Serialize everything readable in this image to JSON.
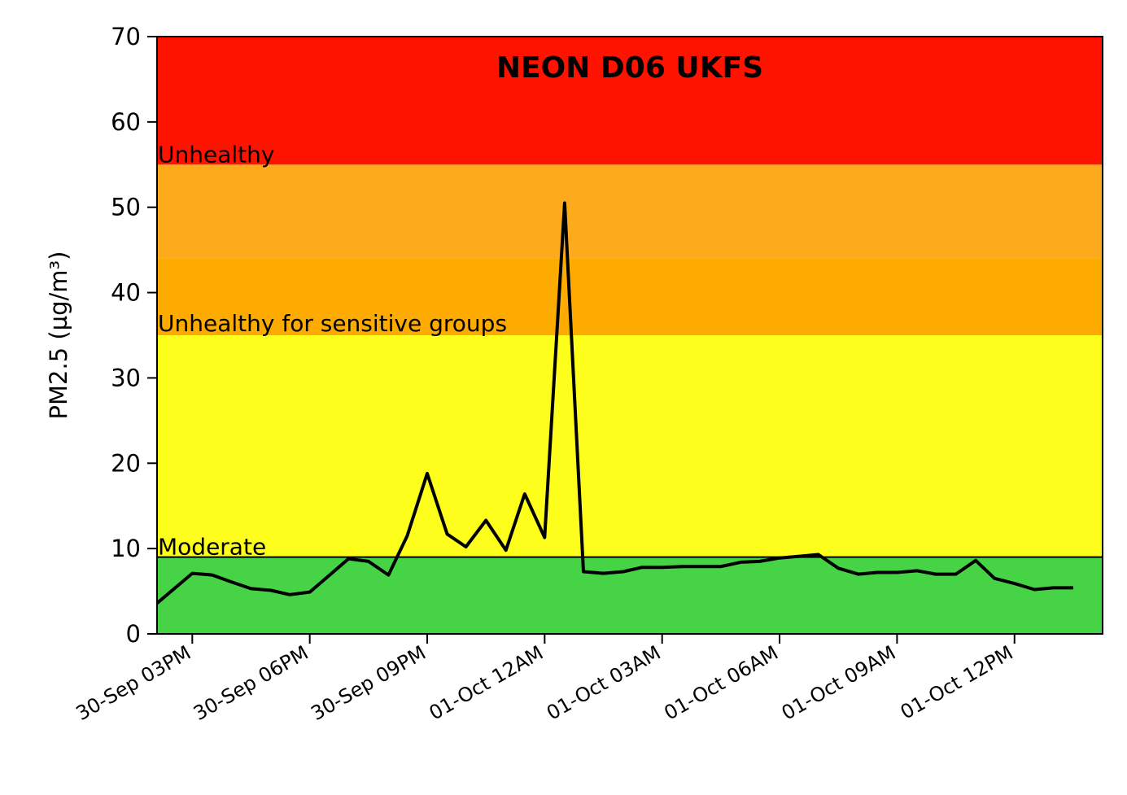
{
  "chart_data": {
    "type": "line",
    "title": "NEON D06 UKFS",
    "ylabel": "PM2.5 (µg/m³)",
    "xlabel": "",
    "ylim": [
      0,
      70
    ],
    "xlim": [
      -0.3,
      7.75
    ],
    "yticks": [
      0,
      10,
      20,
      30,
      40,
      50,
      60,
      70
    ],
    "xticks": [
      {
        "value": 0,
        "label": "30-Sep 03PM"
      },
      {
        "value": 1,
        "label": "30-Sep 06PM"
      },
      {
        "value": 2,
        "label": "30-Sep 09PM"
      },
      {
        "value": 3,
        "label": "01-Oct 12AM"
      },
      {
        "value": 4,
        "label": "01-Oct 03AM"
      },
      {
        "value": 5,
        "label": "01-Oct 06AM"
      },
      {
        "value": 6,
        "label": "01-Oct 09AM"
      },
      {
        "value": 7,
        "label": "01-Oct 12PM"
      }
    ],
    "x_unit": "hours (each tick = 3 hours)",
    "grid": false,
    "line_color": "#000000",
    "bands": [
      {
        "from": 0,
        "to": 9,
        "color": "#46d446",
        "label": ""
      },
      {
        "from": 9,
        "to": 35,
        "color": "#fefe1c",
        "label": "Moderate"
      },
      {
        "from": 35,
        "to": 44,
        "color": "#fdab00",
        "label": "Unhealthy for sensitive groups"
      },
      {
        "from": 44,
        "to": 55,
        "color": "#fdab1c",
        "label": ""
      },
      {
        "from": 55,
        "to": 70,
        "color": "#fe1300",
        "label": "Unhealthy"
      }
    ],
    "threshold_line": 9,
    "band_labels": [
      {
        "text": "Unhealthy",
        "y": 55
      },
      {
        "text": "Unhealthy for sensitive groups",
        "y": 35.2
      },
      {
        "text": "Moderate",
        "y": 9
      }
    ],
    "series": [
      {
        "x": [
          -0.3,
          0.0,
          0.17,
          0.33,
          0.5,
          0.67,
          0.83,
          1.0,
          1.17,
          1.33,
          1.5,
          1.67,
          1.83,
          2.0,
          2.17,
          2.33,
          2.5,
          2.67,
          2.83,
          3.0,
          3.17,
          3.33,
          3.5,
          3.67,
          3.83,
          4.0,
          4.17,
          4.33,
          4.5,
          4.67,
          4.83,
          5.0,
          5.17,
          5.33,
          5.5,
          5.67,
          5.83,
          6.0,
          6.17,
          6.33,
          6.5,
          6.67,
          6.83,
          7.0,
          7.17,
          7.33,
          7.5
        ],
        "y": [
          3.6,
          7.1,
          6.9,
          6.1,
          5.3,
          5.1,
          4.6,
          4.9,
          6.9,
          8.8,
          8.5,
          6.9,
          11.5,
          18.8,
          11.7,
          10.2,
          13.3,
          9.8,
          16.4,
          11.3,
          50.5,
          7.3,
          7.1,
          7.3,
          7.8,
          7.8,
          7.9,
          7.9,
          7.9,
          8.4,
          8.5,
          8.9,
          9.1,
          9.3,
          7.7,
          7.0,
          7.2,
          7.2,
          7.4,
          7.0,
          7.0,
          8.6,
          6.5,
          5.9,
          5.2,
          5.4,
          5.4
        ]
      }
    ]
  }
}
